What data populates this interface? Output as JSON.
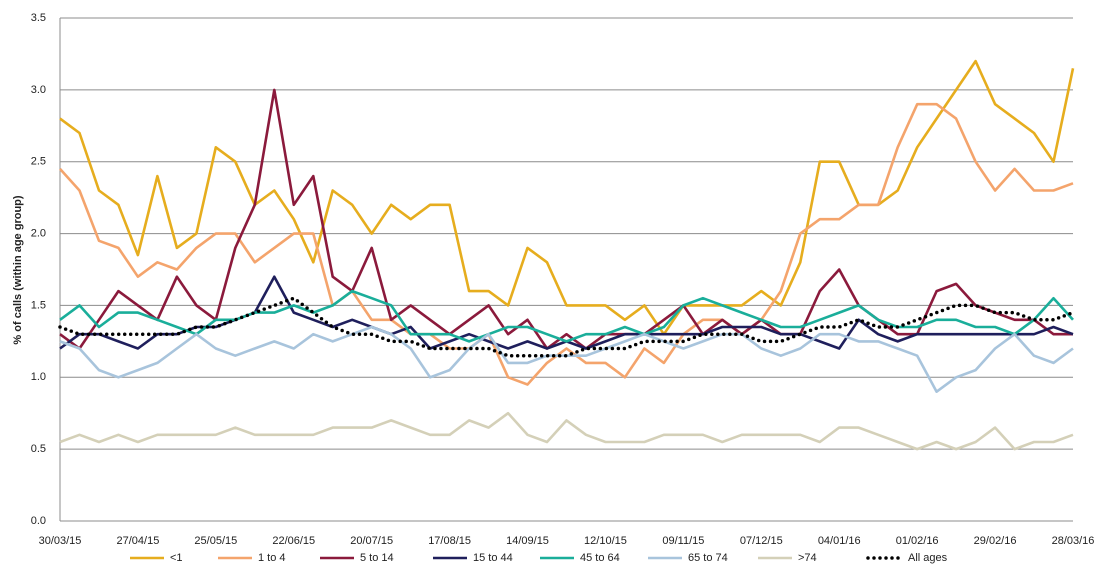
{
  "chart_data": {
    "type": "line",
    "y_label": "% of calls (within age group)",
    "categories": [
      "30/03/15",
      null,
      null,
      null,
      "27/04/15",
      null,
      null,
      null,
      "25/05/15",
      null,
      null,
      null,
      "22/06/15",
      null,
      null,
      null,
      "20/07/15",
      null,
      null,
      null,
      "17/08/15",
      null,
      null,
      null,
      "14/09/15",
      null,
      null,
      null,
      "12/10/15",
      null,
      null,
      null,
      "09/11/15",
      null,
      null,
      null,
      "07/12/15",
      null,
      null,
      null,
      "04/01/16",
      null,
      null,
      null,
      "01/02/16",
      null,
      null,
      null,
      "29/02/16",
      null,
      null,
      null,
      "28/03/16"
    ],
    "ylim": [
      0,
      3.5
    ],
    "yticks": [
      {
        "value": 0,
        "label": "0.0"
      },
      {
        "value": 0.5,
        "label": "0.5"
      },
      {
        "value": 1,
        "label": "1.0"
      },
      {
        "value": 1.5,
        "label": "1.5"
      },
      {
        "value": 2,
        "label": "2.0"
      },
      {
        "value": 2.5,
        "label": "2.5"
      },
      {
        "value": 3,
        "label": "3.0"
      },
      {
        "value": 3.5,
        "label": "3.5"
      }
    ],
    "grid": true,
    "series": [
      {
        "name": "<1",
        "color": "#e6ad1e",
        "line_style": "solid",
        "values": [
          2.8,
          2.7,
          2.3,
          2.2,
          1.85,
          2.4,
          1.9,
          2.0,
          2.6,
          2.5,
          2.2,
          2.3,
          2.1,
          1.8,
          2.3,
          2.2,
          2.0,
          2.2,
          2.1,
          2.2,
          2.2,
          1.6,
          1.6,
          1.5,
          1.9,
          1.8,
          1.5,
          1.5,
          1.5,
          1.4,
          1.5,
          1.3,
          1.5,
          1.5,
          1.5,
          1.5,
          1.6,
          1.5,
          1.8,
          2.5,
          2.5,
          2.2,
          2.2,
          2.3,
          2.6,
          2.8,
          3.0,
          3.2,
          2.9,
          2.8,
          2.7,
          2.5,
          3.15
        ]
      },
      {
        "name": "1 to 4",
        "color": "#f4a46c",
        "line_style": "solid",
        "values": [
          2.45,
          2.3,
          1.95,
          1.9,
          1.7,
          1.8,
          1.75,
          1.9,
          2.0,
          2.0,
          1.8,
          1.9,
          2.0,
          2.0,
          1.5,
          1.6,
          1.4,
          1.4,
          1.3,
          1.3,
          1.2,
          1.2,
          1.3,
          1.0,
          0.95,
          1.1,
          1.2,
          1.1,
          1.1,
          1.0,
          1.2,
          1.1,
          1.3,
          1.4,
          1.4,
          1.3,
          1.4,
          1.6,
          2.0,
          2.1,
          2.1,
          2.2,
          2.2,
          2.6,
          2.9,
          2.9,
          2.8,
          2.5,
          2.3,
          2.45,
          2.3,
          2.3,
          2.35
        ]
      },
      {
        "name": "5 to 14",
        "color": "#8b1a3c",
        "line_style": "solid",
        "values": [
          1.3,
          1.2,
          1.4,
          1.6,
          1.5,
          1.4,
          1.7,
          1.5,
          1.4,
          1.9,
          2.2,
          3.0,
          2.2,
          2.4,
          1.7,
          1.6,
          1.9,
          1.4,
          1.5,
          1.4,
          1.3,
          1.4,
          1.5,
          1.3,
          1.4,
          1.2,
          1.3,
          1.2,
          1.3,
          1.3,
          1.3,
          1.4,
          1.5,
          1.3,
          1.4,
          1.3,
          1.4,
          1.3,
          1.3,
          1.6,
          1.75,
          1.5,
          1.4,
          1.3,
          1.3,
          1.6,
          1.65,
          1.5,
          1.45,
          1.4,
          1.4,
          1.3,
          1.3
        ]
      },
      {
        "name": "15 to 44",
        "color": "#1f1f5c",
        "line_style": "solid",
        "values": [
          1.2,
          1.3,
          1.3,
          1.25,
          1.2,
          1.3,
          1.3,
          1.35,
          1.35,
          1.4,
          1.45,
          1.7,
          1.45,
          1.4,
          1.35,
          1.4,
          1.35,
          1.3,
          1.35,
          1.2,
          1.25,
          1.3,
          1.25,
          1.2,
          1.25,
          1.2,
          1.25,
          1.2,
          1.25,
          1.3,
          1.3,
          1.3,
          1.3,
          1.3,
          1.35,
          1.35,
          1.35,
          1.3,
          1.3,
          1.25,
          1.2,
          1.4,
          1.3,
          1.25,
          1.3,
          1.3,
          1.3,
          1.3,
          1.3,
          1.3,
          1.3,
          1.35,
          1.3
        ]
      },
      {
        "name": "45 to 64",
        "color": "#1aae9a",
        "line_style": "solid",
        "values": [
          1.4,
          1.5,
          1.35,
          1.45,
          1.45,
          1.4,
          1.35,
          1.3,
          1.4,
          1.4,
          1.45,
          1.45,
          1.5,
          1.45,
          1.5,
          1.6,
          1.55,
          1.5,
          1.3,
          1.3,
          1.3,
          1.25,
          1.3,
          1.35,
          1.35,
          1.3,
          1.25,
          1.3,
          1.3,
          1.35,
          1.3,
          1.35,
          1.5,
          1.55,
          1.5,
          1.45,
          1.4,
          1.35,
          1.35,
          1.4,
          1.45,
          1.5,
          1.4,
          1.35,
          1.35,
          1.4,
          1.4,
          1.35,
          1.35,
          1.3,
          1.4,
          1.55,
          1.4
        ]
      },
      {
        "name": "65 to 74",
        "color": "#a8c4dc",
        "line_style": "solid",
        "values": [
          1.25,
          1.2,
          1.05,
          1.0,
          1.05,
          1.1,
          1.2,
          1.3,
          1.2,
          1.15,
          1.2,
          1.25,
          1.2,
          1.3,
          1.25,
          1.3,
          1.35,
          1.3,
          1.2,
          1.0,
          1.05,
          1.2,
          1.3,
          1.1,
          1.1,
          1.15,
          1.15,
          1.15,
          1.2,
          1.25,
          1.3,
          1.25,
          1.2,
          1.25,
          1.3,
          1.3,
          1.2,
          1.15,
          1.2,
          1.3,
          1.3,
          1.25,
          1.25,
          1.2,
          1.15,
          0.9,
          1.0,
          1.05,
          1.2,
          1.3,
          1.15,
          1.1,
          1.2
        ]
      },
      {
        "name": ">74",
        "color": "#d4d0b8",
        "line_style": "solid",
        "values": [
          0.55,
          0.6,
          0.55,
          0.6,
          0.55,
          0.6,
          0.6,
          0.6,
          0.6,
          0.65,
          0.6,
          0.6,
          0.6,
          0.6,
          0.65,
          0.65,
          0.65,
          0.7,
          0.65,
          0.6,
          0.6,
          0.7,
          0.65,
          0.75,
          0.6,
          0.55,
          0.7,
          0.6,
          0.55,
          0.55,
          0.55,
          0.6,
          0.6,
          0.6,
          0.55,
          0.6,
          0.6,
          0.6,
          0.6,
          0.55,
          0.65,
          0.65,
          0.6,
          0.55,
          0.5,
          0.55,
          0.5,
          0.55,
          0.65,
          0.5,
          0.55,
          0.55,
          0.6
        ]
      },
      {
        "name": "All ages",
        "color": "#000000",
        "line_style": "dotted",
        "values": [
          1.35,
          1.3,
          1.3,
          1.3,
          1.3,
          1.3,
          1.3,
          1.35,
          1.35,
          1.4,
          1.45,
          1.5,
          1.55,
          1.45,
          1.35,
          1.3,
          1.3,
          1.25,
          1.25,
          1.2,
          1.2,
          1.2,
          1.2,
          1.15,
          1.15,
          1.15,
          1.15,
          1.2,
          1.2,
          1.2,
          1.25,
          1.25,
          1.25,
          1.3,
          1.3,
          1.3,
          1.25,
          1.25,
          1.3,
          1.35,
          1.35,
          1.4,
          1.35,
          1.35,
          1.4,
          1.45,
          1.5,
          1.5,
          1.45,
          1.45,
          1.4,
          1.4,
          1.45
        ]
      }
    ]
  }
}
